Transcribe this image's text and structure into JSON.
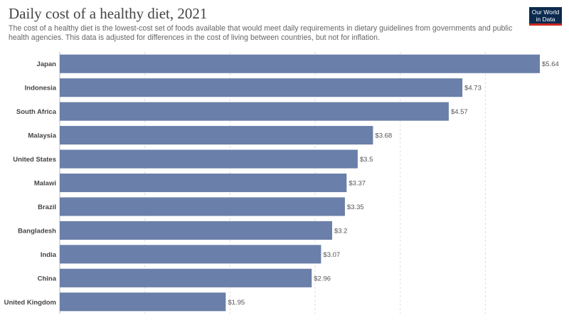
{
  "title": "Daily cost of a healthy diet, 2021",
  "subtitle": "The cost of a healthy diet is the lowest-cost set of foods available that would meet daily requirements in dietary guidelines from governments and public health agencies. This data is adjusted for differences in the cost of living between countries, but not for inflation.",
  "logo": {
    "line1": "Our World",
    "line2": "in Data"
  },
  "colors": {
    "bar": "#6a7fa9",
    "grid": "#dddddd",
    "logo_bg": "#0b2a4f",
    "logo_accent": "#ce261e"
  },
  "chart_data": {
    "type": "bar",
    "orientation": "horizontal",
    "categories": [
      "Japan",
      "Indonesia",
      "South Africa",
      "Malaysia",
      "United States",
      "Malawi",
      "Brazil",
      "Bangladesh",
      "India",
      "China",
      "United Kingdom"
    ],
    "values": [
      5.64,
      4.73,
      4.57,
      3.68,
      3.5,
      3.37,
      3.35,
      3.2,
      3.07,
      2.96,
      1.95
    ],
    "value_labels": [
      "$5.64",
      "$4.73",
      "$4.57",
      "$3.68",
      "$3.5",
      "$3.37",
      "$3.35",
      "$3.2",
      "$3.07",
      "$2.96",
      "$1.95"
    ],
    "xlim": [
      0,
      5.64
    ],
    "grid": true
  }
}
